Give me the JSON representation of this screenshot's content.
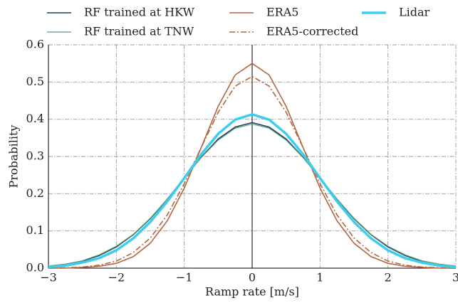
{
  "chart_data": {
    "type": "line",
    "xlabel": "Ramp rate [m/s]",
    "ylabel": "Probability",
    "x": [
      -3,
      -2.75,
      -2.5,
      -2.25,
      -2,
      -1.75,
      -1.5,
      -1.25,
      -1,
      -0.75,
      -0.5,
      -0.25,
      0,
      0.25,
      0.5,
      0.75,
      1,
      1.25,
      1.5,
      1.75,
      2,
      2.25,
      2.5,
      2.75,
      3
    ],
    "series": [
      {
        "name": "RF trained at HKW",
        "color": "#1f3b63",
        "width": 1.6,
        "dash": "solid",
        "values": [
          0.005,
          0.01,
          0.019,
          0.034,
          0.057,
          0.09,
          0.133,
          0.185,
          0.242,
          0.298,
          0.347,
          0.379,
          0.391,
          0.379,
          0.347,
          0.298,
          0.242,
          0.185,
          0.133,
          0.09,
          0.057,
          0.034,
          0.019,
          0.01,
          0.005
        ]
      },
      {
        "name": "RF trained at TNW",
        "color": "#5b9e72",
        "width": 1.2,
        "dash": "solid",
        "values": [
          0.006,
          0.011,
          0.02,
          0.036,
          0.059,
          0.091,
          0.134,
          0.185,
          0.242,
          0.297,
          0.344,
          0.376,
          0.387,
          0.376,
          0.344,
          0.297,
          0.242,
          0.185,
          0.134,
          0.091,
          0.059,
          0.036,
          0.02,
          0.011,
          0.006
        ]
      },
      {
        "name": "ERA5",
        "color": "#b3653f",
        "width": 1.6,
        "dash": "solid",
        "values": [
          0.0,
          0.0,
          0.002,
          0.005,
          0.013,
          0.031,
          0.067,
          0.127,
          0.215,
          0.324,
          0.435,
          0.519,
          0.55,
          0.519,
          0.435,
          0.324,
          0.215,
          0.127,
          0.067,
          0.031,
          0.013,
          0.005,
          0.002,
          0.0,
          0.0
        ]
      },
      {
        "name": "ERA5-corrected",
        "color": "#b3653f",
        "width": 1.6,
        "dash": "dashdot",
        "values": [
          0.0,
          0.001,
          0.003,
          0.008,
          0.019,
          0.042,
          0.081,
          0.143,
          0.227,
          0.324,
          0.419,
          0.489,
          0.515,
          0.489,
          0.419,
          0.324,
          0.227,
          0.143,
          0.081,
          0.042,
          0.019,
          0.008,
          0.003,
          0.001,
          0.0
        ]
      },
      {
        "name": "Lidar",
        "color": "#3dcdef",
        "width": 3.5,
        "dash": "solid",
        "values": [
          0.003,
          0.007,
          0.015,
          0.027,
          0.048,
          0.08,
          0.124,
          0.179,
          0.242,
          0.306,
          0.361,
          0.399,
          0.413,
          0.399,
          0.361,
          0.306,
          0.242,
          0.179,
          0.124,
          0.08,
          0.048,
          0.027,
          0.015,
          0.007,
          0.003
        ]
      }
    ],
    "xlim": [
      -3,
      3
    ],
    "ylim": [
      0,
      0.6
    ],
    "xticks": [
      {
        "value": -3,
        "label": "−3"
      },
      {
        "value": -2,
        "label": "−2"
      },
      {
        "value": -1,
        "label": "−1"
      },
      0,
      1,
      2,
      3
    ],
    "yticks": [
      {
        "value": 0,
        "label": "0.0"
      },
      0.1,
      0.2,
      0.3,
      0.4,
      0.5,
      0.6
    ],
    "grid": true
  }
}
